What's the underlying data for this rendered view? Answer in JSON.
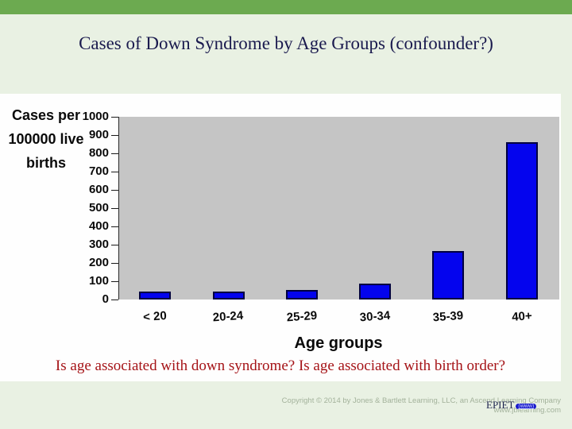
{
  "slide": {
    "title": "Cases of Down Syndrome by Age Groups (confounder?)",
    "question_text": "Is age associated with down syndrome? Is age associated with birth order?",
    "copyright_line1": "Copyright © 2014 by Jones & Bartlett Learning, LLC, an Ascend Learning Company",
    "copyright_line2": "www.jblearning.com",
    "epiet_label": "EPIET",
    "epiet_link": "(www)"
  },
  "chart_data": {
    "type": "bar",
    "title": "",
    "categories": [
      "< 20",
      "20-24",
      "25-29",
      "30-34",
      "35-39",
      "40+"
    ],
    "values": [
      45,
      45,
      50,
      85,
      265,
      860
    ],
    "xlabel": "Age groups",
    "ylabel": "Cases per 100000 live births",
    "ylim": [
      0,
      1000
    ],
    "ytick_step": 100,
    "grid": false,
    "legend": "none",
    "bar_color": "#0404ee",
    "bar_border_color": "#000040",
    "plot_bg": "#c5c5c5"
  },
  "colors": {
    "top_bar": "#6caa50",
    "background": "#e9f1e3",
    "panel": "#fefefe",
    "title_text": "#1a1a4e",
    "question_text": "#a51317",
    "copyright_text": "#a3b29b"
  }
}
